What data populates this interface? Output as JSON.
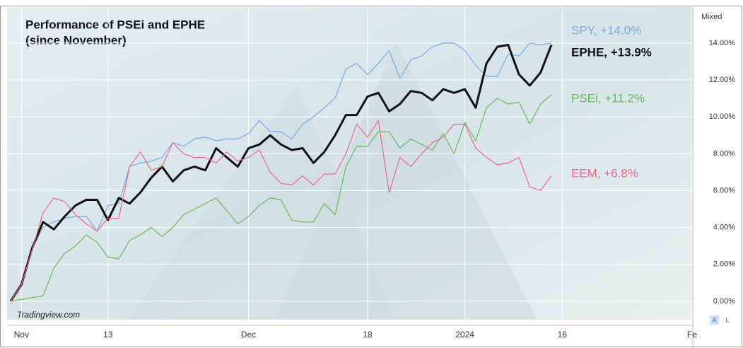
{
  "chart_data": {
    "type": "line",
    "title": "Performance of PSEi and EPHE",
    "subtitle": "(since November)",
    "watermark": "Tradingview.com",
    "scale_mode": "Mixed",
    "axis_buttons": [
      "A",
      "L"
    ],
    "categories": [
      null,
      "Nov",
      null,
      null,
      null,
      null,
      null,
      null,
      null,
      "13",
      null,
      null,
      null,
      null,
      null,
      null,
      null,
      null,
      null,
      null,
      null,
      null,
      "Dec",
      null,
      null,
      null,
      null,
      null,
      null,
      null,
      null,
      null,
      null,
      "18",
      null,
      null,
      null,
      null,
      null,
      null,
      null,
      null,
      "2024",
      null,
      null,
      null,
      null,
      null,
      null,
      null,
      null,
      "16",
      null,
      null,
      null,
      null,
      null,
      null,
      null,
      null,
      null,
      null,
      null,
      "Fe"
    ],
    "series": [
      {
        "name": "SPY, +14.0%",
        "color": "#7aa7ef",
        "width": 1.2,
        "values": [
          0,
          1.0,
          2.9,
          4.0,
          4.3,
          4.5,
          4.6,
          4.6,
          3.8,
          5.2,
          5.3,
          7.3,
          7.5,
          7.6,
          7.8,
          8.6,
          8.4,
          8.8,
          8.9,
          8.7,
          8.8,
          8.8,
          9.1,
          9.8,
          9.2,
          9.2,
          8.8,
          9.6,
          10.0,
          10.5,
          11.0,
          12.6,
          12.9,
          12.3,
          12.9,
          13.6,
          12.1,
          13.1,
          13.3,
          13.8,
          14.0,
          14.0,
          13.6,
          12.8,
          12.2,
          12.2,
          13.4,
          13.3,
          14.0,
          13.9,
          14.0,
          null,
          null,
          null,
          null,
          null,
          null,
          null,
          null,
          null,
          null,
          null,
          null,
          null
        ]
      },
      {
        "name": "EPHE, +13.9%",
        "color": "#111111",
        "width": 3,
        "values": [
          0,
          0.9,
          2.9,
          4.3,
          3.9,
          4.6,
          5.2,
          5.5,
          5.5,
          4.4,
          5.6,
          5.3,
          5.9,
          6.7,
          7.3,
          6.5,
          7.1,
          7.3,
          7.1,
          8.3,
          7.8,
          7.3,
          8.3,
          8.5,
          9.0,
          8.5,
          8.2,
          8.3,
          7.5,
          8.1,
          9.0,
          10.1,
          10.1,
          11.1,
          11.3,
          10.3,
          10.7,
          11.4,
          11.3,
          10.9,
          11.5,
          11.3,
          11.5,
          10.5,
          12.9,
          13.8,
          13.9,
          12.3,
          11.7,
          12.4,
          13.9,
          null,
          null,
          null,
          null,
          null,
          null,
          null,
          null,
          null,
          null,
          null,
          null,
          null
        ]
      },
      {
        "name": "PSEi, +11.2%",
        "color": "#6ab85d",
        "width": 1.2,
        "values": [
          0,
          0.1,
          0.2,
          0.3,
          1.8,
          2.6,
          3.0,
          3.6,
          3.2,
          2.4,
          2.3,
          3.3,
          3.6,
          4.0,
          3.5,
          4.0,
          4.7,
          5.0,
          5.3,
          5.6,
          4.9,
          4.2,
          4.6,
          5.2,
          5.6,
          5.5,
          4.4,
          4.3,
          4.3,
          5.3,
          4.7,
          7.3,
          8.4,
          8.4,
          9.2,
          9.2,
          8.3,
          8.8,
          8.5,
          8.2,
          9.1,
          8.0,
          9.7,
          8.7,
          10.5,
          11.0,
          10.7,
          10.8,
          9.6,
          10.7,
          11.2,
          null,
          null,
          null,
          null,
          null,
          null,
          null,
          null,
          null,
          null,
          null,
          null,
          null
        ]
      },
      {
        "name": "EEM, +6.8%",
        "color": "#f0648c",
        "width": 1.2,
        "values": [
          0,
          0.9,
          2.8,
          4.8,
          5.6,
          5.4,
          4.7,
          4.2,
          3.8,
          4.5,
          4.5,
          7.3,
          8.1,
          7.1,
          7.3,
          8.6,
          8.0,
          7.8,
          7.8,
          7.5,
          8.1,
          7.6,
          7.8,
          8.2,
          7.0,
          6.4,
          6.3,
          6.8,
          6.3,
          6.9,
          6.9,
          8.0,
          9.6,
          8.9,
          9.8,
          5.9,
          7.8,
          7.3,
          8.0,
          8.6,
          8.9,
          9.6,
          9.6,
          8.3,
          7.8,
          7.4,
          7.5,
          7.8,
          6.2,
          6.0,
          6.8,
          null,
          null,
          null,
          null,
          null,
          null,
          null,
          null,
          null,
          null,
          null,
          null,
          null
        ]
      }
    ],
    "ylim": [
      -1,
      15.8
    ],
    "yticks": [
      {
        "value": 0,
        "label": "0.00%"
      },
      {
        "value": 2,
        "label": "2.00%"
      },
      {
        "value": 4,
        "label": "4.00%"
      },
      {
        "value": 6,
        "label": "6.00%"
      },
      {
        "value": 8,
        "label": "8.00%"
      },
      {
        "value": 10,
        "label": "10.00%"
      },
      {
        "value": 12,
        "label": "12.00%"
      },
      {
        "value": 14,
        "label": "14.00%"
      }
    ],
    "grid": true
  }
}
